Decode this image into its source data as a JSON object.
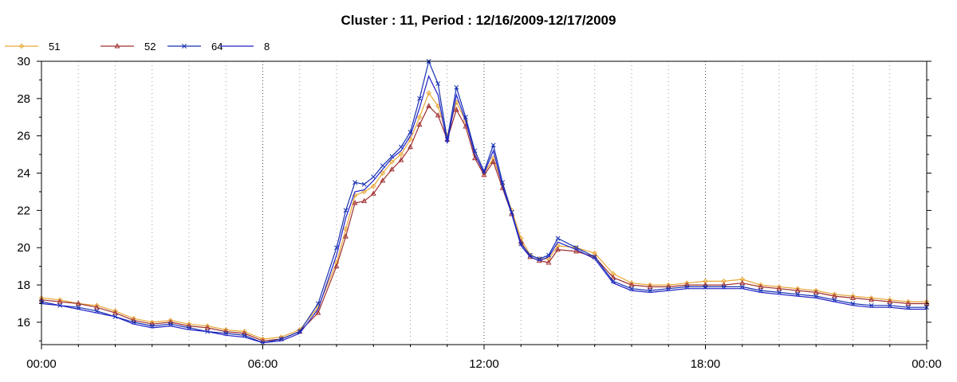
{
  "chart_data": {
    "type": "line",
    "title": "Cluster : 11, Period : 12/16/2009-12/17/2009",
    "xlabel": "",
    "ylabel": "",
    "x_tick_labels": [
      "00:00",
      "06:00",
      "12:00",
      "18:00",
      "00:00"
    ],
    "y_ticks": [
      16,
      18,
      20,
      22,
      24,
      26,
      28,
      30
    ],
    "ylim": [
      14.8,
      30
    ],
    "xlim_hours": [
      0,
      24
    ],
    "grid": true,
    "legend_position": "top-left",
    "x_hours": [
      0,
      0.5,
      1,
      1.5,
      2,
      2.5,
      3,
      3.5,
      4,
      4.5,
      5,
      5.5,
      6,
      6.5,
      7,
      7.5,
      8,
      8.25,
      8.5,
      8.75,
      9,
      9.25,
      9.5,
      9.75,
      10,
      10.25,
      10.5,
      10.75,
      11,
      11.25,
      11.5,
      11.75,
      12,
      12.25,
      12.5,
      12.75,
      13,
      13.25,
      13.5,
      13.75,
      14,
      14.5,
      15,
      15.5,
      16,
      16.5,
      17,
      17.5,
      18,
      18.5,
      19,
      19.5,
      20,
      20.5,
      21,
      21.5,
      22,
      22.5,
      23,
      23.5,
      24
    ],
    "series": [
      {
        "name": "51",
        "color": "#e8a838",
        "marker": "diamond",
        "values": [
          17.3,
          17.2,
          17.0,
          16.9,
          16.6,
          16.2,
          16.0,
          16.1,
          15.9,
          15.8,
          15.6,
          15.5,
          15.1,
          15.2,
          15.6,
          16.8,
          19.2,
          21.0,
          22.8,
          23.0,
          23.3,
          24.0,
          24.6,
          25.0,
          25.8,
          27.0,
          28.3,
          27.6,
          26.0,
          27.8,
          26.8,
          25.0,
          24.0,
          24.8,
          23.4,
          22.0,
          20.5,
          19.6,
          19.4,
          19.4,
          20.1,
          20.0,
          19.7,
          18.6,
          18.1,
          18.0,
          18.0,
          18.1,
          18.2,
          18.2,
          18.3,
          18.0,
          17.9,
          17.8,
          17.7,
          17.5,
          17.4,
          17.3,
          17.2,
          17.1,
          17.1
        ]
      },
      {
        "name": "52",
        "color": "#a03030",
        "marker": "triangle",
        "values": [
          17.2,
          17.1,
          17.0,
          16.8,
          16.5,
          16.1,
          15.9,
          16.0,
          15.8,
          15.7,
          15.5,
          15.4,
          15.0,
          15.1,
          15.5,
          16.5,
          19.0,
          20.6,
          22.4,
          22.5,
          22.9,
          23.6,
          24.2,
          24.7,
          25.4,
          26.6,
          27.6,
          27.1,
          25.8,
          27.4,
          26.5,
          24.8,
          23.9,
          24.6,
          23.2,
          21.8,
          20.3,
          19.5,
          19.3,
          19.2,
          19.9,
          19.8,
          19.5,
          18.4,
          18.0,
          17.9,
          17.9,
          18.0,
          18.0,
          18.0,
          18.1,
          17.9,
          17.8,
          17.7,
          17.6,
          17.4,
          17.3,
          17.2,
          17.1,
          17.0,
          17.0
        ]
      },
      {
        "name": "64",
        "color": "#1530b0",
        "marker": "x",
        "values": [
          17.1,
          16.9,
          16.8,
          16.6,
          16.3,
          16.0,
          15.8,
          15.9,
          15.7,
          15.5,
          15.4,
          15.3,
          14.9,
          15.1,
          15.5,
          17.0,
          20.0,
          22.0,
          23.5,
          23.4,
          23.8,
          24.4,
          24.9,
          25.4,
          26.2,
          28.0,
          30.0,
          28.8,
          25.8,
          28.6,
          27.0,
          25.2,
          24.1,
          25.5,
          23.5,
          21.9,
          20.2,
          19.6,
          19.4,
          19.6,
          20.5,
          20.0,
          19.5,
          18.2,
          17.8,
          17.7,
          17.8,
          17.9,
          17.9,
          17.9,
          17.9,
          17.7,
          17.6,
          17.5,
          17.4,
          17.2,
          17.0,
          16.9,
          16.9,
          16.8,
          16.8
        ]
      },
      {
        "name": "8",
        "color": "#2020c8",
        "marker": "none",
        "values": [
          17.0,
          16.9,
          16.7,
          16.5,
          16.3,
          15.9,
          15.7,
          15.8,
          15.6,
          15.5,
          15.3,
          15.2,
          14.9,
          15.0,
          15.4,
          16.7,
          19.6,
          21.6,
          23.0,
          23.1,
          23.6,
          24.2,
          24.8,
          25.2,
          26.0,
          27.5,
          29.2,
          28.2,
          25.6,
          28.2,
          26.8,
          25.0,
          24.0,
          25.2,
          23.3,
          21.8,
          20.1,
          19.5,
          19.3,
          19.5,
          20.3,
          19.9,
          19.4,
          18.1,
          17.7,
          17.6,
          17.7,
          17.8,
          17.8,
          17.8,
          17.8,
          17.6,
          17.5,
          17.4,
          17.3,
          17.1,
          16.9,
          16.8,
          16.8,
          16.7,
          16.7
        ]
      }
    ]
  }
}
